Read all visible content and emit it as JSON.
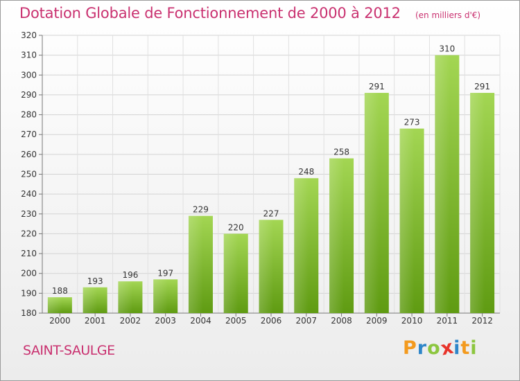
{
  "chart_data": {
    "type": "bar",
    "title": "Dotation Globale de Fonctionnement de 2000 à 2012",
    "subtitle": "(en milliers d'€)",
    "categories": [
      "2000",
      "2001",
      "2002",
      "2003",
      "2004",
      "2005",
      "2006",
      "2007",
      "2008",
      "2009",
      "2010",
      "2011",
      "2012"
    ],
    "values": [
      188,
      193,
      196,
      197,
      229,
      220,
      227,
      248,
      258,
      291,
      273,
      310,
      291
    ],
    "ylim": [
      180,
      320
    ],
    "yticks": [
      180,
      190,
      200,
      210,
      220,
      230,
      240,
      250,
      260,
      270,
      280,
      290,
      300,
      310,
      320
    ],
    "grid": true,
    "bar_color": "#7cb828"
  },
  "commune_name": "SAINT-SAULGE",
  "logo": {
    "letters": [
      "P",
      "r",
      "o",
      "x",
      "i",
      "t",
      "i"
    ],
    "colors": [
      "#f39a1e",
      "#2e86c9",
      "#8cc63f",
      "#e8332a",
      "#2e86c9",
      "#f39a1e",
      "#8cc63f"
    ]
  }
}
